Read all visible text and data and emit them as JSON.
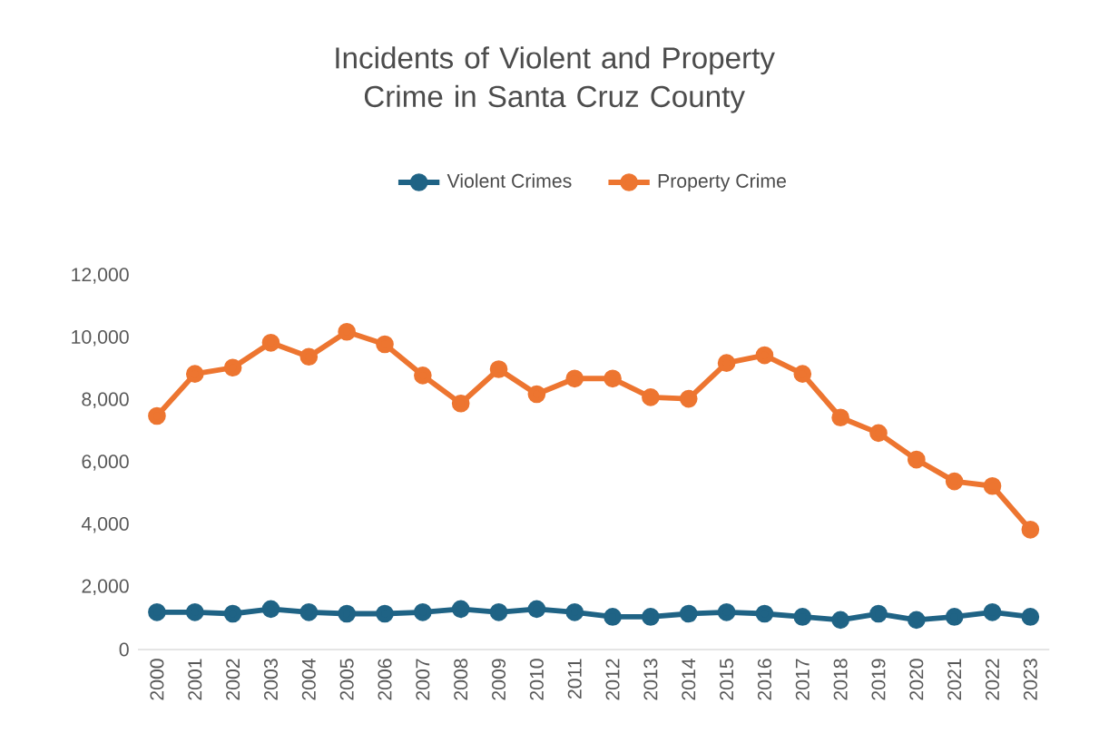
{
  "chart_data": {
    "type": "line",
    "title": "Incidents of Violent and Property Crime in Santa Cruz County",
    "categories": [
      "2000",
      "2001",
      "2002",
      "2003",
      "2004",
      "2005",
      "2006",
      "2007",
      "2008",
      "2009",
      "2010",
      "2011",
      "2012",
      "2013",
      "2014",
      "2015",
      "2016",
      "2017",
      "2018",
      "2019",
      "2020",
      "2021",
      "2022",
      "2023"
    ],
    "series": [
      {
        "name": "Violent Crimes",
        "color": "#1f6385",
        "values": [
          1200,
          1200,
          1150,
          1300,
          1200,
          1150,
          1150,
          1200,
          1300,
          1200,
          1300,
          1200,
          1050,
          1050,
          1150,
          1200,
          1150,
          1050,
          950,
          1150,
          950,
          1050,
          1200,
          1050
        ]
      },
      {
        "name": "Property Crime",
        "color": "#ed7530",
        "values": [
          7500,
          8850,
          9050,
          9850,
          9400,
          10200,
          9800,
          8800,
          7900,
          9000,
          8200,
          8700,
          8700,
          8100,
          8050,
          9200,
          9450,
          8850,
          7450,
          6950,
          6100,
          5400,
          5250,
          3850
        ]
      }
    ],
    "ylim": [
      0,
      12000
    ],
    "yticks": [
      {
        "value": 0,
        "label": "0"
      },
      {
        "value": 2000,
        "label": "2,000"
      },
      {
        "value": 4000,
        "label": "4,000"
      },
      {
        "value": 6000,
        "label": "6,000"
      },
      {
        "value": 8000,
        "label": "8,000"
      },
      {
        "value": 10000,
        "label": "10,000"
      },
      {
        "value": 12000,
        "label": "12,000"
      }
    ],
    "grid": false,
    "legend": "top",
    "marker": "circle",
    "line_style": "solid"
  }
}
